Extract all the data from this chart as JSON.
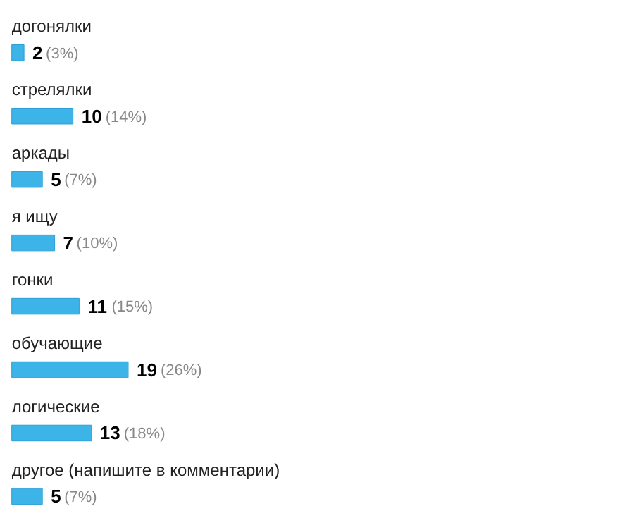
{
  "chart_data": {
    "type": "bar",
    "orientation": "horizontal",
    "categories": [
      "догонялки",
      "стрелялки",
      "аркады",
      "я ищу",
      "гонки",
      "обучающие",
      "логические",
      "другое (напишите в комментарии)"
    ],
    "values": [
      2,
      10,
      5,
      7,
      11,
      19,
      13,
      5
    ],
    "value_labels": [
      "2 (3%)",
      "10 (14%)",
      "5 (7%)",
      "7 (10%)",
      "11 (15%)",
      "19 (26%)",
      "13 (18%)",
      "5 (7%)"
    ],
    "color": "#3db4e8"
  }
}
